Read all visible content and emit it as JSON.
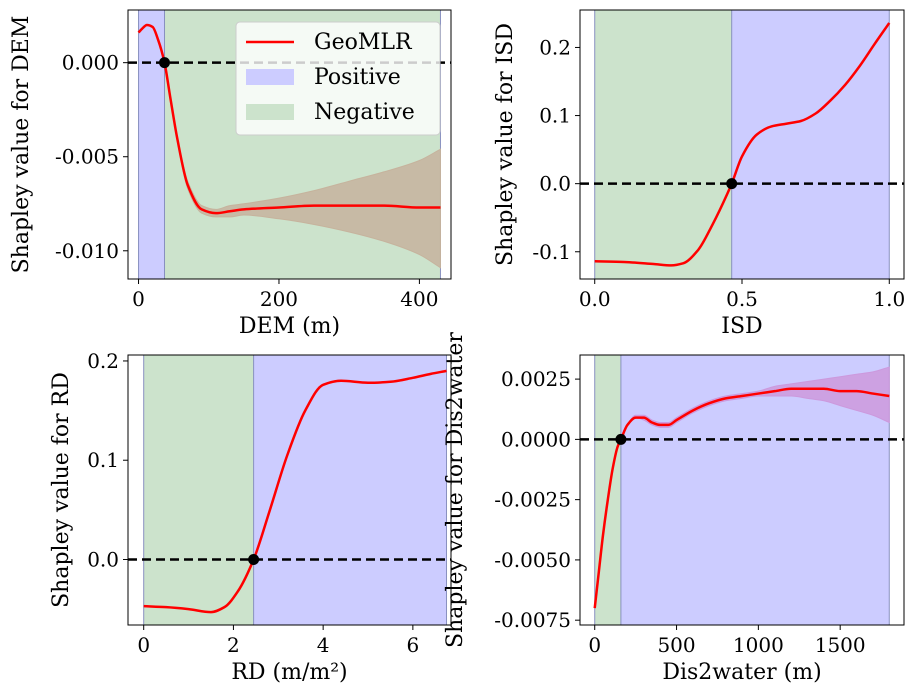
{
  "chart_data": [
    {
      "type": "line",
      "xlabel": "DEM (m)",
      "ylabel": "Shapley value for DEM",
      "xlim": [
        -15,
        445
      ],
      "ylim": [
        -0.0115,
        0.0028
      ],
      "xticks": [
        0,
        200,
        400
      ],
      "xtick_labels": [
        "0",
        "200",
        "400"
      ],
      "yticks": [
        0.0,
        -0.005,
        -0.01
      ],
      "ytick_labels": [
        "0.000",
        "-0.005",
        "-0.010"
      ],
      "zero_crossing": 37,
      "regions": [
        {
          "name": "Positive",
          "x0": 0,
          "x1": 37
        },
        {
          "name": "Negative",
          "x0": 37,
          "x1": 430
        }
      ],
      "series": [
        {
          "name": "GeoMLR",
          "x": [
            0,
            5,
            12,
            20,
            28,
            37,
            45,
            55,
            70,
            90,
            110,
            130,
            150,
            200,
            250,
            300,
            350,
            400,
            430
          ],
          "y": [
            0.0016,
            0.0018,
            0.002,
            0.0019,
            0.0012,
            0.0,
            -0.0018,
            -0.004,
            -0.0065,
            -0.0078,
            -0.008,
            -0.0079,
            -0.0078,
            -0.0077,
            -0.0076,
            -0.0076,
            -0.0076,
            -0.0077,
            -0.0077
          ],
          "lower": [
            0.0016,
            0.0018,
            0.002,
            0.0019,
            0.0012,
            0.0,
            -0.0018,
            -0.0041,
            -0.0067,
            -0.008,
            -0.0082,
            -0.0082,
            -0.0081,
            -0.0083,
            -0.0086,
            -0.009,
            -0.0095,
            -0.0102,
            -0.0109
          ],
          "upper": [
            0.0016,
            0.0018,
            0.002,
            0.0019,
            0.0012,
            0.0,
            -0.0018,
            -0.0039,
            -0.0063,
            -0.0076,
            -0.0078,
            -0.0076,
            -0.0075,
            -0.0072,
            -0.0068,
            -0.0063,
            -0.0058,
            -0.0052,
            -0.0046
          ]
        }
      ],
      "legend": {
        "placement": "upper right",
        "entries": [
          {
            "label": "GeoMLR",
            "kind": "line",
            "color": "#ff0000"
          },
          {
            "label": "Positive",
            "kind": "patch",
            "color": "#ccccff"
          },
          {
            "label": "Negative",
            "kind": "patch",
            "color": "#cce3cc"
          }
        ]
      }
    },
    {
      "type": "line",
      "xlabel": "ISD",
      "ylabel": "Shapley value for ISD",
      "xlim": [
        -0.05,
        1.05
      ],
      "ylim": [
        -0.14,
        0.255
      ],
      "xticks": [
        0,
        0.5,
        1.0
      ],
      "xtick_labels": [
        "0.0",
        "0.5",
        "1.0"
      ],
      "yticks": [
        0.2,
        0.1,
        0.0,
        -0.1
      ],
      "ytick_labels": [
        "0.2",
        "0.1",
        "0.0",
        "-0.1"
      ],
      "zero_crossing": 0.465,
      "regions": [
        {
          "name": "Negative",
          "x0": 0,
          "x1": 0.465
        },
        {
          "name": "Positive",
          "x0": 0.465,
          "x1": 1.0
        }
      ],
      "series": [
        {
          "name": "GeoMLR",
          "x": [
            0,
            0.1,
            0.2,
            0.26,
            0.3,
            0.35,
            0.4,
            0.45,
            0.465,
            0.5,
            0.55,
            0.6,
            0.65,
            0.7,
            0.75,
            0.8,
            0.85,
            0.9,
            0.95,
            1.0
          ],
          "y": [
            -0.114,
            -0.115,
            -0.118,
            -0.12,
            -0.117,
            -0.098,
            -0.06,
            -0.015,
            0.0,
            0.04,
            0.072,
            0.084,
            0.088,
            0.092,
            0.103,
            0.122,
            0.145,
            0.173,
            0.205,
            0.236
          ]
        }
      ]
    },
    {
      "type": "line",
      "xlabel": "RD (m/m²)",
      "ylabel": "Shapley value for RD",
      "xlim": [
        -0.35,
        6.85
      ],
      "ylim": [
        -0.066,
        0.206
      ],
      "xticks": [
        0,
        2,
        4,
        6
      ],
      "xtick_labels": [
        "0",
        "2",
        "4",
        "6"
      ],
      "yticks": [
        0.2,
        0.1,
        0.0
      ],
      "ytick_labels": [
        "0.2",
        "0.1",
        "0.0"
      ],
      "zero_crossing": 2.45,
      "regions": [
        {
          "name": "Negative",
          "x0": 0,
          "x1": 2.45
        },
        {
          "name": "Positive",
          "x0": 2.45,
          "x1": 6.75
        }
      ],
      "series": [
        {
          "name": "GeoMLR",
          "x": [
            0,
            0.5,
            1.0,
            1.5,
            1.8,
            2.1,
            2.45,
            2.8,
            3.2,
            3.6,
            4.0,
            4.4,
            5.0,
            5.5,
            6.0,
            6.4,
            6.75
          ],
          "y": [
            -0.047,
            -0.048,
            -0.05,
            -0.053,
            -0.048,
            -0.032,
            0.0,
            0.048,
            0.105,
            0.15,
            0.176,
            0.18,
            0.178,
            0.179,
            0.183,
            0.187,
            0.19
          ]
        }
      ]
    },
    {
      "type": "line",
      "xlabel": "Dis2water (m)",
      "ylabel": "Shapley value for Dis2water",
      "xlim": [
        -90,
        1890
      ],
      "ylim": [
        -0.0077,
        0.0035
      ],
      "xticks": [
        0,
        500,
        1000,
        1500
      ],
      "xtick_labels": [
        "0",
        "500",
        "1000",
        "1500"
      ],
      "yticks": [
        0.0025,
        0.0,
        -0.0025,
        -0.005,
        -0.0075
      ],
      "ytick_labels": [
        "0.0025",
        "0.0000",
        "-0.0025",
        "-0.0050",
        "-0.0075"
      ],
      "zero_crossing": 160,
      "regions": [
        {
          "name": "Negative",
          "x0": 0,
          "x1": 160
        },
        {
          "name": "Positive",
          "x0": 160,
          "x1": 1800
        }
      ],
      "series": [
        {
          "name": "GeoMLR",
          "x": [
            0,
            25,
            50,
            80,
            110,
            140,
            160,
            200,
            250,
            300,
            350,
            400,
            450,
            500,
            600,
            700,
            800,
            900,
            1000,
            1100,
            1200,
            1300,
            1400,
            1500,
            1600,
            1700,
            1800
          ],
          "y": [
            -0.007,
            -0.0055,
            -0.004,
            -0.0025,
            -0.0012,
            -0.0003,
            0.0,
            0.0006,
            0.0009,
            0.0009,
            0.0007,
            0.0006,
            0.0006,
            0.0008,
            0.0012,
            0.0015,
            0.0017,
            0.0018,
            0.0019,
            0.002,
            0.0021,
            0.0021,
            0.0021,
            0.002,
            0.002,
            0.0019,
            0.0018
          ],
          "lower": [
            -0.007,
            -0.0055,
            -0.004,
            -0.0025,
            -0.0012,
            -0.0003,
            0.0,
            0.0006,
            0.0009,
            0.0008,
            0.0006,
            0.0005,
            0.0005,
            0.0007,
            0.0011,
            0.0014,
            0.0016,
            0.0017,
            0.0018,
            0.0018,
            0.0018,
            0.0017,
            0.0016,
            0.0014,
            0.0012,
            0.001,
            0.0007
          ],
          "upper": [
            -0.007,
            -0.0055,
            -0.004,
            -0.0025,
            -0.0012,
            -0.0003,
            0.0,
            0.0006,
            0.001,
            0.001,
            0.0008,
            0.0007,
            0.0007,
            0.0009,
            0.0013,
            0.0016,
            0.0018,
            0.0019,
            0.002,
            0.0022,
            0.0023,
            0.0024,
            0.0025,
            0.0026,
            0.0027,
            0.0028,
            0.003
          ]
        }
      ]
    }
  ],
  "colors": {
    "line": "#ff0000",
    "positive": "#ccccff",
    "negative": "#cce3cc",
    "band_on_negative": "#c6b39d",
    "band_on_positive": "#cc99dd",
    "divider": "#8890c0",
    "zero_line": "#000000"
  }
}
